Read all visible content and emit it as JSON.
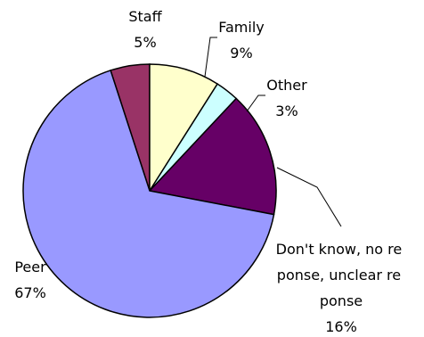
{
  "chart_data": {
    "type": "pie",
    "title": "",
    "slices": [
      {
        "label": "Staff",
        "value": 5,
        "value_label": "5%",
        "color": "#993366"
      },
      {
        "label": "Family",
        "value": 9,
        "value_label": "9%",
        "color": "#ffffcc"
      },
      {
        "label": "Other",
        "value": 3,
        "value_label": "3%",
        "color": "#ccffff"
      },
      {
        "label": "Don't know, no response, unclear response",
        "value": 16,
        "value_label": "16%",
        "color": "#660066"
      },
      {
        "label": "Peer",
        "value": 67,
        "value_label": "67%",
        "color": "#9999ff"
      }
    ],
    "legend": "none"
  }
}
